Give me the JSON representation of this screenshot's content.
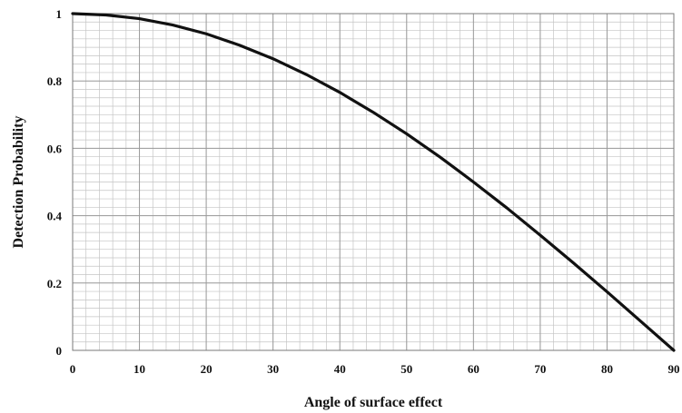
{
  "chart_data": {
    "type": "line",
    "title": "",
    "xlabel": "Angle of surface effect",
    "ylabel": "Detection Probability",
    "xlim": [
      0,
      90
    ],
    "ylim": [
      0,
      1
    ],
    "grid": true,
    "x_ticks": [
      0,
      10,
      20,
      30,
      40,
      50,
      60,
      70,
      80,
      90
    ],
    "x_tick_labels": [
      "0",
      "10",
      "20",
      "30",
      "40",
      "50",
      "60",
      "70",
      "80",
      "90"
    ],
    "y_ticks": [
      0,
      0.2,
      0.4,
      0.6,
      0.8,
      1
    ],
    "y_tick_labels": [
      "0",
      "0.2",
      "0.4",
      "0.6",
      "0.8",
      "1"
    ],
    "series": [
      {
        "color": "#111111",
        "x": [
          0,
          5,
          10,
          15,
          20,
          25,
          30,
          35,
          40,
          45,
          50,
          55,
          60,
          65,
          70,
          75,
          80,
          85,
          90
        ],
        "y": [
          1.0,
          0.996,
          0.985,
          0.966,
          0.94,
          0.906,
          0.866,
          0.819,
          0.766,
          0.707,
          0.643,
          0.574,
          0.5,
          0.423,
          0.342,
          0.259,
          0.174,
          0.087,
          0.0
        ]
      }
    ]
  }
}
